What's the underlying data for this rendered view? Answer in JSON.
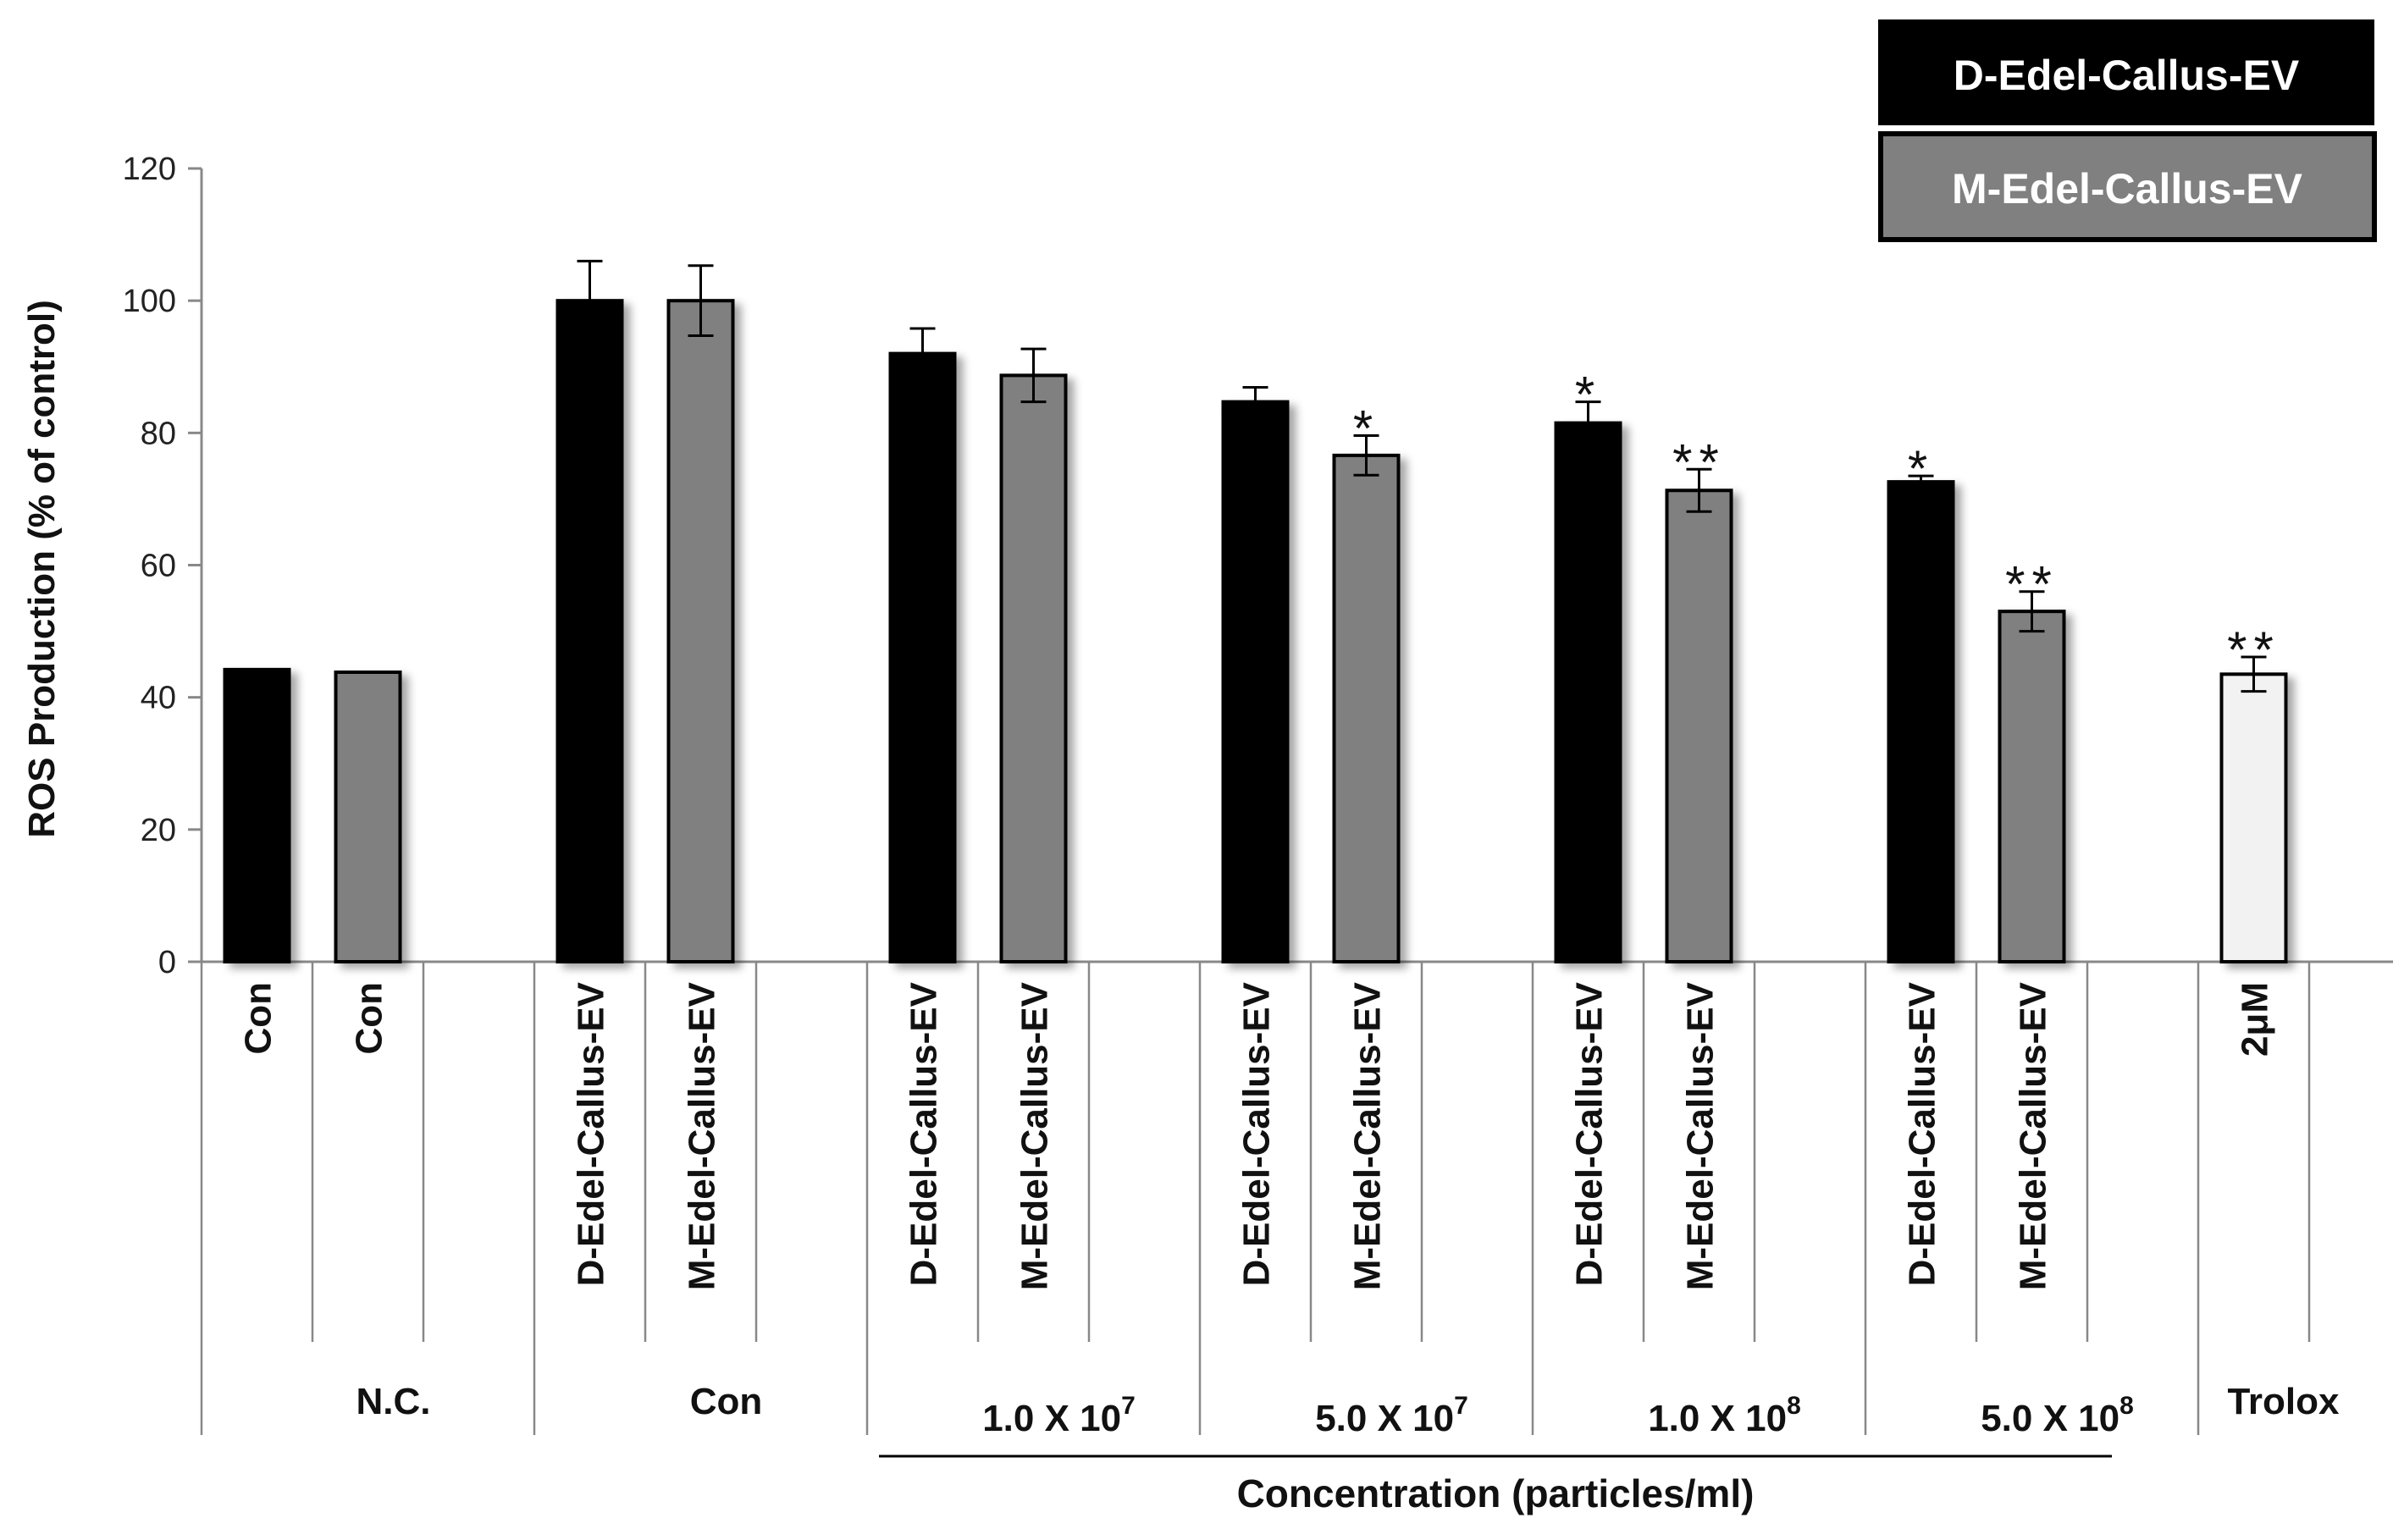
{
  "chart_data": {
    "type": "bar",
    "title": "",
    "ylabel": "ROS Production (% of control)",
    "xlabel": "Concentration (particles/ml)",
    "ylim": [
      0,
      120
    ],
    "yticks": [
      0,
      20,
      40,
      60,
      80,
      100,
      120
    ],
    "grid": false,
    "legend_position": "top-right",
    "legend": [
      {
        "name": "D-Edel-Callus-EV",
        "color": "#000000"
      },
      {
        "name": "M-Edel-Callus-EV",
        "color": "#808080"
      }
    ],
    "groups": [
      {
        "label": "N.C.",
        "exponent": "",
        "bars": [
          {
            "label": "Con",
            "value": 44.2,
            "error": 0,
            "sig": "",
            "color": "#000000"
          },
          {
            "label": "Con",
            "value": 43.8,
            "error": 0,
            "sig": "",
            "color": "#808080"
          }
        ]
      },
      {
        "label": "Con",
        "exponent": "",
        "bars": [
          {
            "label": "D-Edel-Callus-EV",
            "value": 100,
            "error": 6,
            "sig": "",
            "color": "#000000"
          },
          {
            "label": "M-Edel-Callus-EV",
            "value": 100,
            "error": 5.3,
            "sig": "",
            "color": "#808080"
          }
        ]
      },
      {
        "label": "1.0 X 10",
        "exponent": "7",
        "bars": [
          {
            "label": "D-Edel-Callus-EV",
            "value": 92,
            "error": 3.8,
            "sig": "",
            "color": "#000000"
          },
          {
            "label": "M-Edel-Callus-EV",
            "value": 88.7,
            "error": 4,
            "sig": "",
            "color": "#808080"
          }
        ]
      },
      {
        "label": "5.0 X 10",
        "exponent": "7",
        "bars": [
          {
            "label": "D-Edel-Callus-EV",
            "value": 84.7,
            "error": 2.2,
            "sig": "",
            "color": "#000000"
          },
          {
            "label": "M-Edel-Callus-EV",
            "value": 76.6,
            "error": 3,
            "sig": "*",
            "color": "#808080"
          }
        ]
      },
      {
        "label": "1.0 X 10",
        "exponent": "8",
        "bars": [
          {
            "label": "D-Edel-Callus-EV",
            "value": 81.5,
            "error": 3.2,
            "sig": "*",
            "color": "#000000"
          },
          {
            "label": "M-Edel-Callus-EV",
            "value": 71.3,
            "error": 3.2,
            "sig": "**",
            "color": "#808080"
          }
        ]
      },
      {
        "label": "5.0 X 10",
        "exponent": "8",
        "bars": [
          {
            "label": "D-Edel-Callus-EV",
            "value": 72.6,
            "error": 0.9,
            "sig": "*",
            "color": "#000000"
          },
          {
            "label": "M-Edel-Callus-EV",
            "value": 53,
            "error": 3,
            "sig": "**",
            "color": "#808080"
          }
        ]
      },
      {
        "label": "Trolox",
        "exponent": "",
        "bars": [
          {
            "label": "2μM",
            "value": 43.5,
            "error": 2.6,
            "sig": "**",
            "color": "#f2f2f2"
          }
        ]
      }
    ]
  }
}
